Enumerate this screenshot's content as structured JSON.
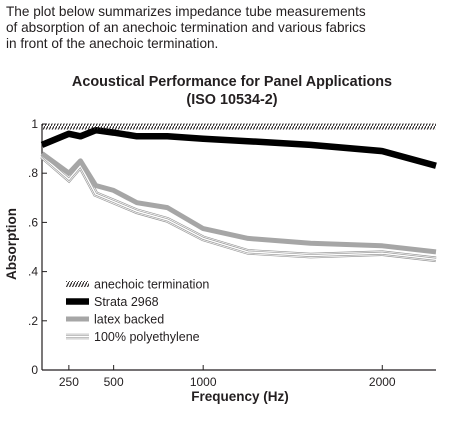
{
  "intro": {
    "lines": [
      "The plot below summarizes impedance tube measurements",
      "of absorption of an anechoic termination and various fabrics",
      "in front of the anechoic termination."
    ]
  },
  "chart_data": {
    "type": "line",
    "title": "Acoustical Performance for Panel Applications",
    "subtitle": "(ISO 10534-2)",
    "xlabel": "Frequency (Hz)",
    "ylabel": "Absorption",
    "x_scale": "linear",
    "xlim": [
      100,
      2300
    ],
    "ylim": [
      0,
      1
    ],
    "x_ticks": [
      250,
      500,
      1000,
      2000
    ],
    "x_tick_labels": [
      "250",
      "500",
      "1000",
      "2000"
    ],
    "y_ticks": [
      0,
      0.2,
      0.4,
      0.6,
      0.8,
      1
    ],
    "y_tick_labels": [
      "0",
      ".2",
      ".4",
      ".6",
      ".8",
      "1"
    ],
    "grid": false,
    "legend_position": "bottom-left",
    "x": [
      100,
      250,
      315,
      400,
      500,
      630,
      800,
      1000,
      1250,
      1600,
      2000,
      2300
    ],
    "series": [
      {
        "name": "anechoic termination",
        "style": "hatched",
        "color": "#231f20",
        "values": [
          0.99,
          0.99,
          0.99,
          0.99,
          0.99,
          0.99,
          0.99,
          0.99,
          0.99,
          0.99,
          0.99,
          0.99
        ]
      },
      {
        "name": "Strata 2968",
        "style": "thick",
        "color": "#000000",
        "values": [
          0.915,
          0.96,
          0.95,
          0.975,
          0.965,
          0.95,
          0.95,
          0.94,
          0.93,
          0.915,
          0.89,
          0.83
        ]
      },
      {
        "name": "latex backed",
        "style": "medium",
        "color": "#a6a6a6",
        "values": [
          0.88,
          0.8,
          0.85,
          0.75,
          0.73,
          0.68,
          0.66,
          0.575,
          0.535,
          0.515,
          0.505,
          0.48
        ]
      },
      {
        "name": "100% polyethylene",
        "style": "triple-thin",
        "color": "#9a9a9a",
        "values": [
          0.87,
          0.775,
          0.83,
          0.715,
          0.685,
          0.645,
          0.61,
          0.535,
          0.48,
          0.465,
          0.475,
          0.45
        ]
      }
    ]
  }
}
